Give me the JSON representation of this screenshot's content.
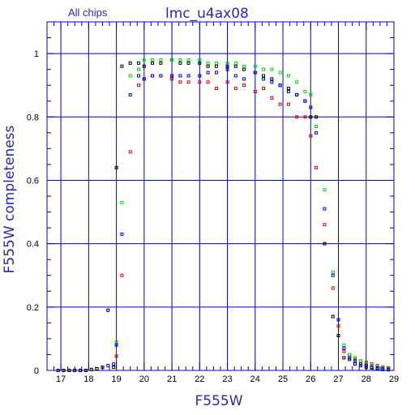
{
  "chart_data": {
    "type": "scatter",
    "title": "lmc_u4ax08",
    "subtitle": "All chips",
    "xlabel": "F555W",
    "ylabel": "F555W completeness",
    "xlim": [
      16.5,
      29
    ],
    "ylim": [
      0,
      1.1
    ],
    "grid": true,
    "x_ticks": [
      17,
      18,
      19,
      20,
      21,
      22,
      23,
      24,
      25,
      26,
      27,
      28,
      29
    ],
    "y_ticks": [
      0,
      0.2,
      0.4,
      0.6,
      0.8,
      1
    ],
    "x_tick_labels": [
      "17",
      "18",
      "19",
      "20",
      "21",
      "22",
      "23",
      "24",
      "25",
      "26",
      "27",
      "28",
      "29"
    ],
    "y_tick_labels": [
      "0",
      "0.2",
      "0.4",
      "0.6",
      "0.8",
      "1"
    ],
    "colors": {
      "grid": "#0000cc",
      "axis": "#0000cc",
      "label": "#2a2aa8",
      "black": "#000000",
      "red": "#e00000",
      "green": "#00dd00",
      "blue": "#0000ee"
    },
    "series": [
      {
        "color": "black",
        "x": [
          16.9,
          17.1,
          17.3,
          17.5,
          17.7,
          17.9,
          18.1,
          18.3,
          18.5,
          18.7,
          18.9,
          19.0,
          19.2,
          19.5,
          19.8,
          20.0,
          20.3,
          20.6,
          21.0,
          21.3,
          21.6,
          22.0,
          22.3,
          22.6,
          23.0,
          23.3,
          23.6,
          24.0,
          24.3,
          24.6,
          24.9,
          25.2,
          25.5,
          25.8,
          26.0,
          26.2,
          26.5,
          26.8,
          27.0,
          27.2,
          27.4,
          27.6,
          27.8,
          28.0,
          28.2,
          28.4,
          28.6,
          28.8
        ],
        "y": [
          0,
          0,
          0,
          0,
          0,
          0,
          0.003,
          0.005,
          0.01,
          0.19,
          0.01,
          0.64,
          0.96,
          0.97,
          0.97,
          0.96,
          0.97,
          0.97,
          0.98,
          0.97,
          0.97,
          0.97,
          0.96,
          0.96,
          0.96,
          0.96,
          0.95,
          0.94,
          0.93,
          0.92,
          0.9,
          0.89,
          0.87,
          0.85,
          0.8,
          0.8,
          0.4,
          0.17,
          0.11,
          0.04,
          0.035,
          0.02,
          0.015,
          0.01,
          0.008,
          0.005,
          0.003,
          0.002
        ]
      },
      {
        "color": "red",
        "x": [
          19.0,
          19.2,
          19.5,
          19.8,
          20.0,
          20.3,
          20.6,
          21.0,
          21.3,
          21.6,
          22.0,
          22.3,
          22.6,
          23.0,
          23.3,
          23.6,
          24.0,
          24.3,
          24.6,
          24.9,
          25.2,
          25.5,
          25.8,
          26.0,
          26.2,
          26.5,
          26.8,
          27.0,
          27.2,
          27.4,
          27.6,
          27.8,
          28.0,
          28.2,
          28.4,
          28.6,
          28.8
        ],
        "y": [
          0.045,
          0.3,
          0.69,
          0.9,
          0.92,
          0.93,
          0.93,
          0.92,
          0.91,
          0.91,
          0.91,
          0.91,
          0.89,
          0.91,
          0.89,
          0.9,
          0.88,
          0.89,
          0.86,
          0.84,
          0.84,
          0.8,
          0.8,
          0.74,
          0.64,
          0.46,
          0.26,
          0.14,
          0.06,
          0.05,
          0.035,
          0.03,
          0.025,
          0.02,
          0.015,
          0.01,
          0.008
        ]
      },
      {
        "color": "green",
        "x": [
          19.0,
          19.2,
          19.5,
          19.8,
          20.0,
          20.3,
          20.6,
          21.0,
          21.3,
          21.6,
          22.0,
          22.3,
          22.6,
          23.0,
          23.3,
          23.6,
          24.0,
          24.3,
          24.6,
          24.9,
          25.2,
          25.5,
          25.8,
          26.0,
          26.2,
          26.5,
          26.8,
          27.0,
          27.2,
          27.4,
          27.6,
          27.8,
          28.0,
          28.2,
          28.4,
          28.6,
          28.8
        ],
        "y": [
          0.09,
          0.53,
          0.93,
          0.95,
          0.98,
          0.98,
          0.98,
          0.98,
          0.98,
          0.98,
          0.98,
          0.97,
          0.97,
          0.97,
          0.97,
          0.96,
          0.96,
          0.95,
          0.95,
          0.94,
          0.93,
          0.91,
          0.88,
          0.87,
          0.77,
          0.57,
          0.31,
          0.16,
          0.08,
          0.05,
          0.04,
          0.03,
          0.02,
          0.015,
          0.01,
          0.008,
          0.005
        ]
      },
      {
        "color": "blue",
        "x": [
          18.7,
          18.9,
          19.0,
          19.2,
          19.5,
          19.8,
          20.0,
          20.3,
          20.6,
          21.0,
          21.3,
          21.6,
          22.0,
          22.3,
          22.6,
          23.0,
          23.3,
          23.6,
          24.0,
          24.3,
          24.6,
          24.9,
          25.2,
          25.5,
          25.8,
          26.0,
          26.2,
          26.5,
          26.8,
          27.0,
          27.2,
          27.4,
          27.6,
          27.8,
          28.0,
          28.2,
          28.4,
          28.6,
          28.8
        ],
        "y": [
          0.015,
          0.02,
          0.08,
          0.43,
          0.87,
          0.93,
          0.92,
          0.93,
          0.93,
          0.93,
          0.93,
          0.93,
          0.93,
          0.94,
          0.94,
          0.95,
          0.93,
          0.92,
          0.94,
          0.92,
          0.91,
          0.9,
          0.88,
          0.87,
          0.85,
          0.83,
          0.75,
          0.51,
          0.3,
          0.16,
          0.07,
          0.04,
          0.03,
          0.02,
          0.015,
          0.01,
          0.008,
          0.005,
          0.003
        ]
      }
    ]
  }
}
